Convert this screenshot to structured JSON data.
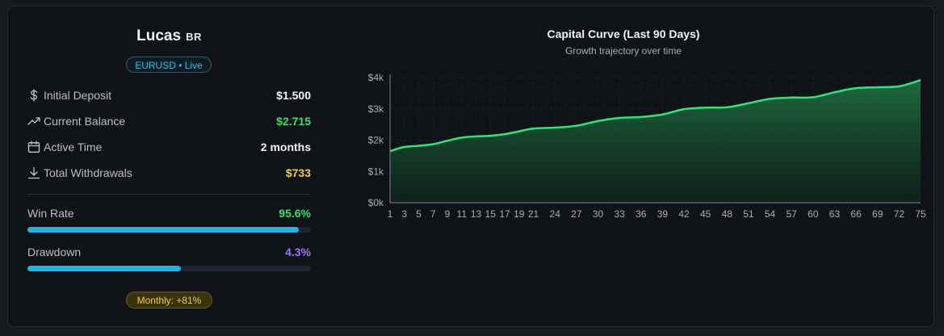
{
  "profile": {
    "name": "Lucas",
    "country": "BR",
    "account_badge": "EURUSD • Live"
  },
  "stats": [
    {
      "icon": "dollar-icon",
      "label": "Initial Deposit",
      "value": "$1.500",
      "color": "#f2f4f7"
    },
    {
      "icon": "trending-up-icon",
      "label": "Current Balance",
      "value": "$2.715",
      "color": "#35e36b"
    },
    {
      "icon": "calendar-icon",
      "label": "Active Time",
      "value": "2 months",
      "color": "#f2f4f7"
    },
    {
      "icon": "download-icon",
      "label": "Total Withdrawals",
      "value": "$733",
      "color": "#f1cf3a"
    }
  ],
  "metrics": {
    "win_rate": {
      "label": "Win Rate",
      "value": "95.6%",
      "percent": 95.6,
      "color": "#35e36b"
    },
    "drawdown": {
      "label": "Drawdown",
      "value": "4.3%",
      "fill_fraction": 0.54,
      "color": "#a074f0"
    }
  },
  "monthly_badge": "Monthly: +81%",
  "chart": {
    "title": "Capital Curve (Last 90 Days)",
    "subtitle": "Growth trajectory over time"
  },
  "chart_data": {
    "type": "area",
    "title": "Capital Curve (Last 90 Days)",
    "subtitle": "Growth trajectory over time",
    "xlabel": "",
    "ylabel": "",
    "ylim": [
      0,
      4000
    ],
    "yticks": [
      {
        "value": 0,
        "label": "$0k"
      },
      {
        "value": 1000,
        "label": "$1k"
      },
      {
        "value": 2000,
        "label": "$2k"
      },
      {
        "value": 3000,
        "label": "$3k"
      },
      {
        "value": 4000,
        "label": "$4k"
      }
    ],
    "xticks": [
      "1",
      "3",
      "5",
      "7",
      "9",
      "11",
      "13",
      "15",
      "17",
      "19",
      "21",
      "24",
      "27",
      "30",
      "33",
      "36",
      "39",
      "42",
      "45",
      "48",
      "51",
      "54",
      "57",
      "60",
      "63",
      "66",
      "69",
      "72",
      "75"
    ],
    "xlim": [
      1,
      75
    ],
    "grid": true,
    "line_color": "#2ee57a",
    "x": [
      1,
      3,
      5,
      7,
      9,
      11,
      13,
      15,
      17,
      19,
      21,
      24,
      27,
      30,
      33,
      36,
      39,
      42,
      45,
      48,
      51,
      54,
      57,
      60,
      63,
      66,
      69,
      72,
      75
    ],
    "values": [
      1650,
      1780,
      1820,
      1870,
      1980,
      2080,
      2120,
      2140,
      2190,
      2280,
      2370,
      2400,
      2460,
      2610,
      2710,
      2740,
      2820,
      2990,
      3040,
      3050,
      3180,
      3320,
      3360,
      3370,
      3530,
      3660,
      3690,
      3720,
      3920
    ]
  }
}
